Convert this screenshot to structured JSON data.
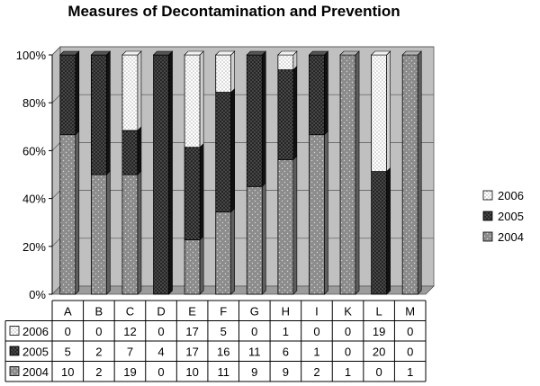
{
  "chart_data": {
    "type": "bar",
    "stacked": "percent",
    "title": "Measures of Decontamination and Prevention",
    "categories": [
      "A",
      "B",
      "C",
      "D",
      "E",
      "F",
      "G",
      "H",
      "I",
      "K",
      "L",
      "M"
    ],
    "series": [
      {
        "name": "2004",
        "values": [
          10,
          2,
          19,
          0,
          10,
          11,
          9,
          9,
          2,
          1,
          0,
          1
        ],
        "color": "#8c8c8c",
        "pattern": "light-dots"
      },
      {
        "name": "2005",
        "values": [
          5,
          2,
          7,
          4,
          17,
          16,
          11,
          6,
          1,
          0,
          20,
          0
        ],
        "color": "#2b2b2b",
        "pattern": "dense-dots"
      },
      {
        "name": "2006",
        "values": [
          0,
          0,
          12,
          0,
          17,
          5,
          0,
          1,
          0,
          0,
          19,
          0
        ],
        "color": "#ffffff",
        "pattern": "sparse-dots"
      }
    ],
    "yticks": [
      "0%",
      "20%",
      "40%",
      "60%",
      "80%",
      "100%"
    ],
    "ylim": [
      0,
      100
    ],
    "grid": true,
    "legend": "right",
    "data_table": true
  }
}
